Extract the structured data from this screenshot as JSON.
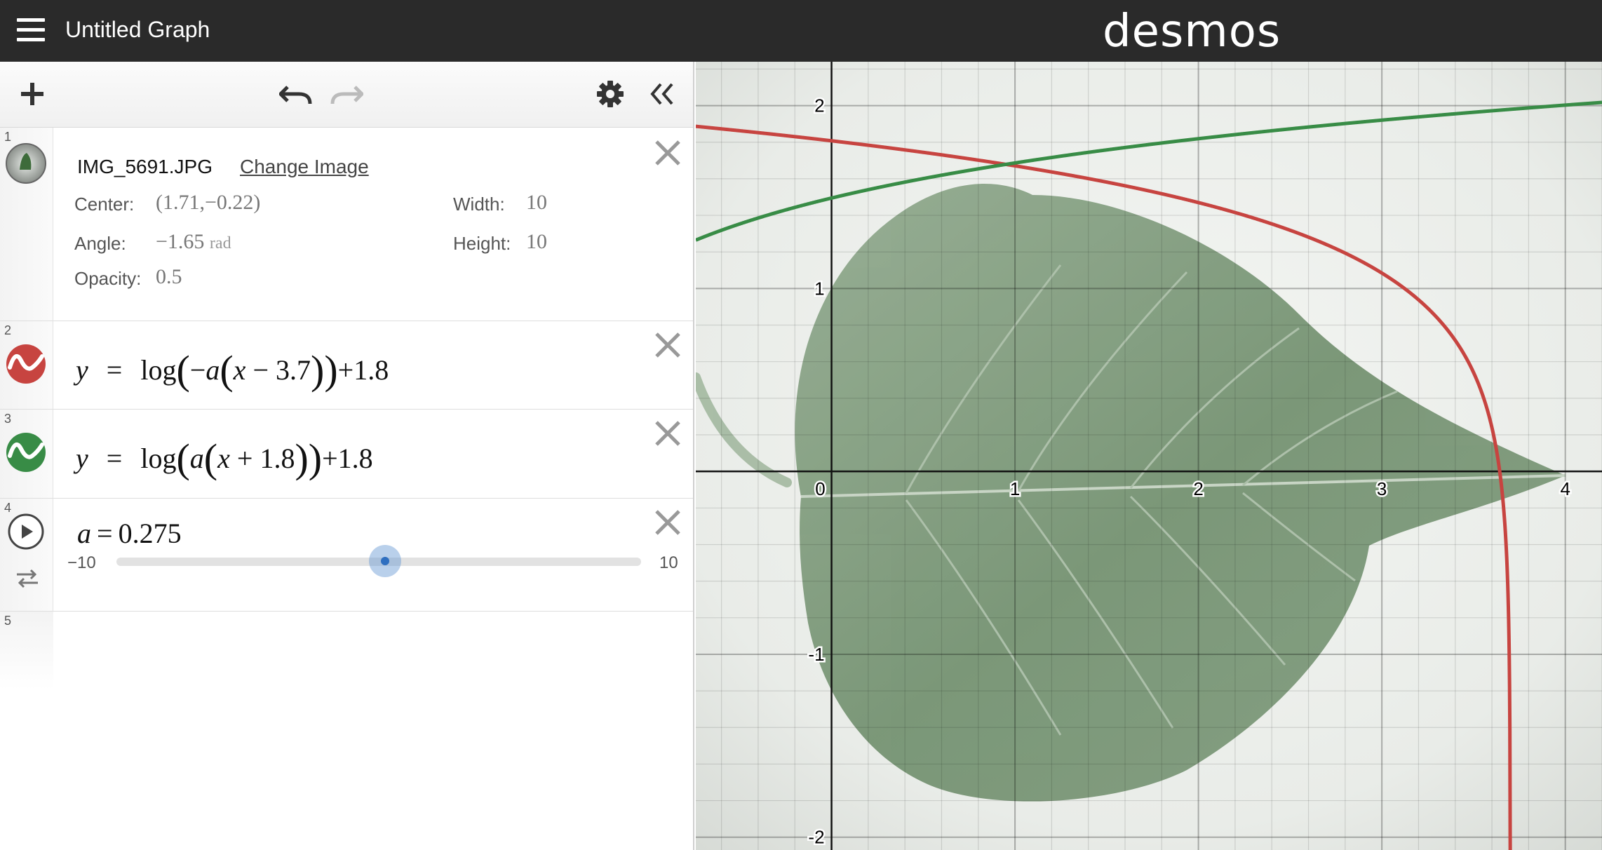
{
  "header": {
    "title": "Untitled Graph",
    "logo": "desmos"
  },
  "toolbar": {
    "add_icon": "plus-icon",
    "undo_icon": "undo-icon",
    "redo_icon": "redo-icon",
    "settings_icon": "gear-icon",
    "collapse_icon": "double-chevron-left-icon"
  },
  "expressions": [
    {
      "num": "1",
      "type": "image",
      "filename": "IMG_5691.JPG",
      "change_label": "Change Image",
      "center_label": "Center:",
      "center_value": "(1.71,−0.22)",
      "width_label": "Width:",
      "width_value": "10",
      "angle_label": "Angle:",
      "angle_value": "−1.65",
      "angle_unit": "rad",
      "height_label": "Height:",
      "height_value": "10",
      "opacity_label": "Opacity:",
      "opacity_value": "0.5"
    },
    {
      "num": "2",
      "type": "function",
      "color": "#c74440",
      "lhs": "y",
      "eq": "=",
      "fn": "log",
      "inner_a": "−",
      "var_a": "a",
      "x": "x",
      "op": "−",
      "const": "3.7",
      "tail": "+1.8"
    },
    {
      "num": "3",
      "type": "function",
      "color": "#388c46",
      "lhs": "y",
      "eq": "=",
      "fn": "log",
      "inner_a": "",
      "var_a": "a",
      "x": "x",
      "op": "+",
      "const": "1.8",
      "tail": "+1.8"
    },
    {
      "num": "4",
      "type": "slider",
      "var": "a",
      "eq": "=",
      "value": "0.275",
      "min": "−10",
      "max": "10"
    },
    {
      "num": "5",
      "type": "empty"
    }
  ],
  "graph": {
    "x_ticks": [
      "0",
      "1",
      "2",
      "3",
      "4"
    ],
    "y_ticks": [
      "2",
      "1",
      "-1",
      "-2"
    ]
  },
  "chart_data": {
    "type": "line",
    "xlim": [
      -0.74,
      4.2
    ],
    "ylim": [
      -2.07,
      2.24
    ],
    "grid": true,
    "a": 0.275,
    "series": [
      {
        "expression": "y = log(−a(x − 3.7)) + 1.8",
        "color": "#c74440"
      },
      {
        "expression": "y = log(a(x + 1.8)) + 1.8",
        "color": "#388c46"
      }
    ]
  }
}
